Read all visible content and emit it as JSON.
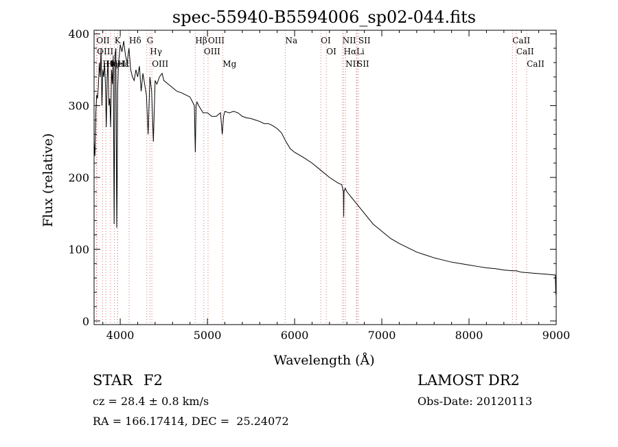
{
  "chart_data": {
    "type": "line",
    "title": "spec-55940-B5594006_sp02-044.fits",
    "xlabel": "Wavelength (Å)",
    "ylabel": "Flux (relative)",
    "xlim": [
      3700,
      9000
    ],
    "ylim": [
      -5,
      405
    ],
    "x_ticks": [
      4000,
      5000,
      6000,
      7000,
      8000,
      9000
    ],
    "y_ticks": [
      0,
      100,
      200,
      300,
      400
    ],
    "x_minor_step": 200,
    "y_minor_step": 20,
    "line_color": "#000000",
    "marker_color": "#d07070",
    "series": [
      {
        "x": [
          3700,
          3710,
          3720,
          3730,
          3740,
          3750,
          3760,
          3770,
          3780,
          3790,
          3800,
          3810,
          3820,
          3830,
          3840,
          3850,
          3860,
          3870,
          3880,
          3890,
          3900,
          3910,
          3920,
          3930,
          3940,
          3950,
          3960,
          3965,
          3970,
          3980,
          3990,
          4000,
          4020,
          4040,
          4060,
          4080,
          4100,
          4120,
          4140,
          4160,
          4180,
          4200,
          4220,
          4240,
          4260,
          4280,
          4300,
          4320,
          4340,
          4360,
          4380,
          4400,
          4420,
          4450,
          4480,
          4500,
          4550,
          4600,
          4650,
          4700,
          4750,
          4800,
          4830,
          4850,
          4861,
          4870,
          4880,
          4900,
          4950,
          5000,
          5050,
          5100,
          5150,
          5170,
          5185,
          5200,
          5250,
          5300,
          5350,
          5400,
          5450,
          5500,
          5550,
          5600,
          5650,
          5700,
          5750,
          5800,
          5850,
          5900,
          5950,
          6000,
          6100,
          6200,
          6300,
          6400,
          6500,
          6540,
          6560,
          6563,
          6566,
          6580,
          6600,
          6700,
          6800,
          6900,
          7000,
          7100,
          7200,
          7300,
          7400,
          7500,
          7600,
          7700,
          7800,
          7900,
          8000,
          8100,
          8200,
          8300,
          8400,
          8500,
          8540,
          8600,
          8700,
          8800,
          8900,
          8990,
          8995,
          9000
        ],
        "y": [
          250,
          230,
          290,
          315,
          310,
          330,
          360,
          340,
          380,
          300,
          350,
          340,
          360,
          330,
          270,
          340,
          360,
          300,
          310,
          270,
          350,
          330,
          370,
          135,
          370,
          380,
          130,
          200,
          320,
          360,
          370,
          385,
          375,
          390,
          370,
          360,
          380,
          350,
          340,
          335,
          350,
          340,
          355,
          320,
          345,
          330,
          315,
          260,
          340,
          320,
          250,
          335,
          330,
          340,
          345,
          335,
          330,
          325,
          320,
          318,
          315,
          312,
          305,
          300,
          235,
          300,
          305,
          300,
          290,
          290,
          285,
          285,
          290,
          260,
          285,
          292,
          290,
          292,
          290,
          285,
          283,
          282,
          280,
          278,
          275,
          275,
          272,
          268,
          262,
          250,
          240,
          235,
          228,
          220,
          210,
          200,
          192,
          190,
          180,
          145,
          180,
          185,
          180,
          165,
          150,
          135,
          125,
          115,
          108,
          102,
          96,
          92,
          88,
          85,
          82,
          80,
          78,
          76,
          74,
          73,
          71,
          70,
          70,
          68,
          67,
          66,
          65,
          64,
          40,
          35
        ]
      }
    ],
    "reference_lines": [
      {
        "name": "OII",
        "x": 3727
      },
      {
        "name": "OIII",
        "x": 3733
      },
      {
        "name": "Hθ",
        "x": 3798
      },
      {
        "name": "Hη",
        "x": 3835
      },
      {
        "name": "HeII",
        "x": 3889
      },
      {
        "name": "K",
        "x": 3934
      },
      {
        "name": "H",
        "x": 3969
      },
      {
        "name": "Hε",
        "x": 3970
      },
      {
        "name": "Hδ",
        "x": 4102
      },
      {
        "name": "G",
        "x": 4304
      },
      {
        "name": "Hγ",
        "x": 4340
      },
      {
        "name": "OIII",
        "x": 4363
      },
      {
        "name": "Hβ",
        "x": 4861
      },
      {
        "name": "OIII",
        "x": 4959
      },
      {
        "name": "OIII",
        "x": 5007
      },
      {
        "name": "Mg",
        "x": 5175
      },
      {
        "name": "Na",
        "x": 5893
      },
      {
        "name": "OI",
        "x": 6300
      },
      {
        "name": "OI",
        "x": 6364
      },
      {
        "name": "NII",
        "x": 6548
      },
      {
        "name": "Hα",
        "x": 6563
      },
      {
        "name": "NII",
        "x": 6583
      },
      {
        "name": "Li",
        "x": 6708
      },
      {
        "name": "SII",
        "x": 6716
      },
      {
        "name": "SII",
        "x": 6731
      },
      {
        "name": "CaII",
        "x": 8498
      },
      {
        "name": "CaII",
        "x": 8542
      },
      {
        "name": "CaII",
        "x": 8662
      }
    ]
  },
  "info": {
    "class_label": "STAR",
    "subclass": "F2",
    "survey": "LAMOST DR2",
    "cz": "cz = 28.4 ± 0.8 km/s",
    "obs_date": "Obs-Date: 20120113",
    "coords": "RA = 166.17414, DEC =  25.24072"
  }
}
